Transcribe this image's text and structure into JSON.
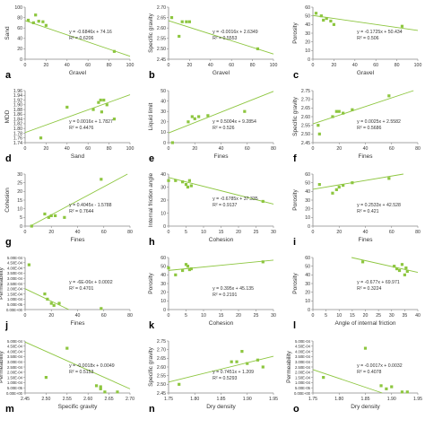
{
  "chart_data": [
    {
      "panel": "a",
      "type": "scatter",
      "xlabel": "Gravel",
      "ylabel": "Sand",
      "xlim": [
        0,
        100
      ],
      "ylim": [
        0,
        100
      ],
      "xticks": [
        0,
        20,
        40,
        60,
        80,
        100
      ],
      "yticks": [
        0,
        20,
        40,
        60,
        80,
        100
      ],
      "x": [
        3,
        8,
        10,
        13,
        17,
        20,
        85
      ],
      "y": [
        75,
        70,
        85,
        73,
        72,
        65,
        15
      ],
      "fit": {
        "slope": -0.6846,
        "intercept": 74.16
      },
      "equation": "y = -0.6846x + 74.16",
      "r2": "R² = 0.6206"
    },
    {
      "panel": "b",
      "type": "scatter",
      "xlabel": "Gravel",
      "ylabel": "Specific gravity",
      "xlim": [
        0,
        100
      ],
      "ylim": [
        2.45,
        2.7
      ],
      "xticks": [
        0,
        20,
        40,
        60,
        80,
        100
      ],
      "yticks": [
        2.45,
        2.5,
        2.55,
        2.6,
        2.65,
        2.7
      ],
      "x": [
        3,
        10,
        13,
        17,
        20,
        85
      ],
      "y": [
        2.65,
        2.56,
        2.63,
        2.63,
        2.63,
        2.5
      ],
      "fit": {
        "slope": -0.0016,
        "intercept": 2.6349
      },
      "equation": "y = -0.0016x + 2.6349",
      "r2": "R² = 0.5553"
    },
    {
      "panel": "c",
      "type": "scatter",
      "xlabel": "Gravel",
      "ylabel": "Porosity",
      "xlim": [
        0,
        100
      ],
      "ylim": [
        0,
        60
      ],
      "xticks": [
        0,
        20,
        40,
        60,
        80,
        100
      ],
      "yticks": [
        0,
        10,
        20,
        30,
        40,
        50,
        60
      ],
      "x": [
        3,
        8,
        10,
        13,
        17,
        20,
        85
      ],
      "y": [
        53,
        50,
        45,
        47,
        44,
        40,
        38
      ],
      "fit": {
        "slope": -0.1725,
        "intercept": 50.434
      },
      "equation": "y = -0.1725x + 50.434",
      "r2": "R² = 0.506"
    },
    {
      "panel": "d",
      "type": "scatter",
      "xlabel": "Sand",
      "ylabel": "MDD",
      "xlim": [
        0,
        100
      ],
      "ylim": [
        1.74,
        1.96
      ],
      "xticks": [
        0,
        20,
        40,
        60,
        80,
        100
      ],
      "yticks": [
        1.74,
        1.76,
        1.78,
        1.8,
        1.82,
        1.84,
        1.86,
        1.88,
        1.9,
        1.92,
        1.94,
        1.96
      ],
      "x": [
        15,
        40,
        65,
        70,
        72,
        73,
        75,
        78,
        85
      ],
      "y": [
        1.76,
        1.89,
        1.88,
        1.91,
        1.92,
        1.87,
        1.92,
        1.9,
        1.84
      ],
      "fit": {
        "slope": 0.0016,
        "intercept": 1.7827
      },
      "equation": "y = 0.0016x + 1.7827",
      "r2": "R² = 0.4476"
    },
    {
      "panel": "e",
      "type": "scatter",
      "xlabel": "Fines",
      "ylabel": "Liquid limit",
      "xlim": [
        0,
        80
      ],
      "ylim": [
        0,
        50
      ],
      "xticks": [
        0,
        20,
        40,
        60,
        80
      ],
      "yticks": [
        0,
        10,
        20,
        30,
        40,
        50
      ],
      "x": [
        3,
        15,
        18,
        20,
        23,
        30,
        58
      ],
      "y": [
        0,
        20,
        25,
        23,
        25,
        26,
        30
      ],
      "fit": {
        "slope": 0.5004,
        "intercept": 9.2854
      },
      "equation": "y = 0.5004x + 9.2854",
      "r2": "R² = 0.526"
    },
    {
      "panel": "f",
      "type": "scatter",
      "xlabel": "Fines",
      "ylabel": "Specific gravity",
      "xlim": [
        0,
        80
      ],
      "ylim": [
        2.45,
        2.75
      ],
      "xticks": [
        0,
        20,
        40,
        60,
        80
      ],
      "yticks": [
        2.45,
        2.5,
        2.55,
        2.6,
        2.65,
        2.7,
        2.75
      ],
      "x": [
        4,
        5,
        15,
        18,
        20,
        23,
        30,
        58
      ],
      "y": [
        2.55,
        2.5,
        2.6,
        2.63,
        2.63,
        2.62,
        2.64,
        2.72
      ],
      "fit": {
        "slope": 0.0025,
        "intercept": 2.5582
      },
      "equation": "y = 0.0025x + 2.5582",
      "r2": "R² = 0.5686"
    },
    {
      "panel": "g",
      "type": "scatter",
      "xlabel": "Fines",
      "ylabel": "Cohesion",
      "xlim": [
        0,
        80
      ],
      "ylim": [
        0,
        30
      ],
      "xticks": [
        0,
        20,
        40,
        60,
        80
      ],
      "yticks": [
        0,
        5,
        10,
        15,
        20,
        25,
        30
      ],
      "x": [
        5,
        15,
        18,
        20,
        23,
        30,
        58
      ],
      "y": [
        0,
        7,
        5,
        6,
        6,
        5,
        27
      ],
      "fit": {
        "slope": 0.4045,
        "intercept": -1.5788
      },
      "equation": "y = 0.4045x - 1.5788",
      "r2": "R² = 0.7644"
    },
    {
      "panel": "h",
      "type": "scatter",
      "xlabel": "Cohesion",
      "ylabel": "Internal friction angle",
      "xlim": [
        0,
        30
      ],
      "ylim": [
        0,
        40
      ],
      "xticks": [
        0,
        5,
        10,
        15,
        20,
        25,
        30
      ],
      "yticks": [
        0,
        10,
        20,
        30,
        40
      ],
      "x": [
        0,
        2,
        4,
        5,
        5.5,
        6,
        6.5,
        27
      ],
      "y": [
        35,
        35,
        34,
        32,
        30,
        35,
        31,
        19
      ],
      "fit": {
        "slope": -0.6785,
        "intercept": 37.335
      },
      "equation": "y = -0.6785x + 37.335",
      "r2": "R² = 0.9137"
    },
    {
      "panel": "i",
      "type": "scatter",
      "xlabel": "Fines",
      "ylabel": "Porosity",
      "xlim": [
        0,
        80
      ],
      "ylim": [
        0,
        60
      ],
      "xticks": [
        0,
        20,
        40,
        60,
        80
      ],
      "yticks": [
        0,
        10,
        20,
        30,
        40,
        50,
        60
      ],
      "x": [
        5,
        15,
        18,
        20,
        23,
        30,
        58
      ],
      "y": [
        48,
        38,
        42,
        45,
        47,
        50,
        55
      ],
      "fit": {
        "slope": 0.2533,
        "intercept": 42.528
      },
      "equation": "y = 0.2533x + 42.528",
      "r2": "R² = 0.421"
    },
    {
      "panel": "j",
      "type": "scatter",
      "xlabel": "Fines",
      "ylabel": "Permeability",
      "xlim": [
        0,
        80
      ],
      "ylim": [
        0,
        0.0005
      ],
      "xticks": [
        0,
        20,
        40,
        60,
        80
      ],
      "yticks": [
        0,
        5e-05,
        0.0001,
        0.00015,
        0.0002,
        0.00025,
        0.0003,
        0.00035,
        0.0004,
        0.00045,
        0.0005
      ],
      "yticklabels": [
        "0.00E+00",
        "5.00E-05",
        "1.00E-04",
        "1.50E-04",
        "2.00E-04",
        "2.50E-04",
        "3.00E-04",
        "3.50E-04",
        "4.00E-04",
        "4.50E-04",
        "5.00E-04"
      ],
      "x": [
        3,
        15,
        17,
        20,
        22,
        26,
        58
      ],
      "y": [
        0.00043,
        0.00015,
        0.0001,
        6e-05,
        4e-05,
        6e-05,
        1e-05
      ],
      "fit": {
        "slope": -6e-06,
        "intercept": 0.0002
      },
      "equation": "y = -6E-06x + 0.0002",
      "r2": "R² = 0.4701"
    },
    {
      "panel": "k",
      "type": "scatter",
      "xlabel": "Cohesion",
      "ylabel": "Porosity",
      "xlim": [
        0,
        30
      ],
      "ylim": [
        0,
        60
      ],
      "xticks": [
        0,
        5,
        10,
        15,
        20,
        25,
        30
      ],
      "yticks": [
        0,
        10,
        20,
        30,
        40,
        50,
        60
      ],
      "x": [
        0,
        2,
        4,
        5,
        5.5,
        6,
        6.5,
        27
      ],
      "y": [
        48,
        40,
        45,
        52,
        50,
        46,
        47,
        55
      ],
      "fit": {
        "slope": 0.395,
        "intercept": 45.135
      },
      "equation": "y = 0.395x + 45.135",
      "r2": "R² = 0.2191"
    },
    {
      "panel": "l",
      "type": "scatter",
      "xlabel": "Angle of internal friction",
      "ylabel": "Porosity",
      "xlim": [
        0,
        40
      ],
      "ylim": [
        0,
        60
      ],
      "xticks": [
        0,
        5,
        10,
        15,
        20,
        25,
        30,
        35,
        40
      ],
      "yticks": [
        0,
        10,
        20,
        30,
        40,
        50,
        60
      ],
      "x": [
        19,
        31,
        32,
        33,
        34,
        35,
        35.5,
        36
      ],
      "y": [
        55,
        50,
        47,
        45,
        52,
        40,
        48,
        44
      ],
      "fit": {
        "slope": -0.677,
        "intercept": 69.971
      },
      "equation": "y = -0.677x + 69.971",
      "r2": "R² = 0.3224"
    },
    {
      "panel": "m",
      "type": "scatter",
      "xlabel": "Specific gravity",
      "ylabel": "Permeability",
      "xlim": [
        2.45,
        2.7
      ],
      "ylim": [
        0,
        0.0005
      ],
      "xticks": [
        2.45,
        2.5,
        2.55,
        2.6,
        2.65,
        2.7
      ],
      "yticks": [
        0,
        5e-05,
        0.0001,
        0.00015,
        0.0002,
        0.00025,
        0.0003,
        0.00035,
        0.0004,
        0.00045,
        0.0005
      ],
      "yticklabels": [
        "0.00E+00",
        "5.00E-05",
        "1.00E-04",
        "1.50E-04",
        "2.00E-04",
        "2.50E-04",
        "3.00E-04",
        "3.50E-04",
        "4.00E-04",
        "4.50E-04",
        "5.00E-04"
      ],
      "x": [
        2.5,
        2.55,
        2.62,
        2.63,
        2.63,
        2.64,
        2.67
      ],
      "y": [
        0.00015,
        0.00043,
        7e-05,
        4e-05,
        6e-05,
        1e-05,
        1e-05
      ],
      "fit": {
        "slope": -0.0018,
        "intercept": 0.0049
      },
      "equation": "y = -0.0018x + 0.0049",
      "r2": "R² = 0.5153"
    },
    {
      "panel": "n",
      "type": "scatter",
      "xlabel": "Dry density",
      "ylabel": "Specific gravity",
      "xlim": [
        1.75,
        1.95
      ],
      "ylim": [
        2.45,
        2.75
      ],
      "xticks": [
        1.75,
        1.8,
        1.85,
        1.9,
        1.95
      ],
      "yticks": [
        2.45,
        2.5,
        2.55,
        2.6,
        2.65,
        2.7,
        2.75
      ],
      "x": [
        1.77,
        1.87,
        1.88,
        1.89,
        1.9,
        1.92,
        1.93
      ],
      "y": [
        2.5,
        2.63,
        2.63,
        2.69,
        2.62,
        2.64,
        2.6
      ],
      "fit": {
        "slope": 0.7451,
        "intercept": 1.209
      },
      "equation": "y = 0.7451x + 1.209",
      "r2": "R² = 0.5293"
    },
    {
      "panel": "o",
      "type": "scatter",
      "xlabel": "Dry density",
      "ylabel": "Permeability",
      "xlim": [
        1.75,
        1.95
      ],
      "ylim": [
        0,
        0.0005
      ],
      "xticks": [
        1.75,
        1.8,
        1.85,
        1.9,
        1.95
      ],
      "yticks": [
        0,
        5e-05,
        0.0001,
        0.00015,
        0.0002,
        0.00025,
        0.0003,
        0.00035,
        0.0004,
        0.00045,
        0.0005
      ],
      "yticklabels": [
        "0.00E+00",
        "5.00E-05",
        "1.00E-04",
        "1.50E-04",
        "2.00E-04",
        "2.50E-04",
        "3.00E-04",
        "3.50E-04",
        "4.00E-04",
        "4.50E-04",
        "5.00E-04"
      ],
      "x": [
        1.77,
        1.85,
        1.88,
        1.89,
        1.9,
        1.92,
        1.93
      ],
      "y": [
        0.00015,
        0.00043,
        7e-05,
        4e-05,
        6e-05,
        1e-05,
        1e-05
      ],
      "fit": {
        "slope": -0.0017,
        "intercept": 0.0032
      },
      "equation": "y = -0.0017x + 0.0032",
      "r2": "R² = 0.4078"
    }
  ],
  "style": {
    "marker_color": "#8dc63f",
    "line_color": "#8dc63f",
    "axis_color": "#888888",
    "text_color": "#333333",
    "grid": false,
    "legend": "none"
  }
}
